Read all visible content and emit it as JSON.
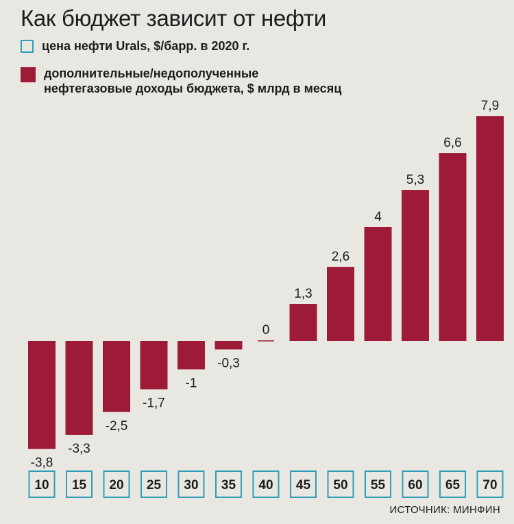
{
  "title": "Как бюджет зависит от нефти",
  "legend": {
    "price": {
      "label": "цена нефти Urals, $/барр. в 2020 г.",
      "color": "#2f9db8"
    },
    "income": {
      "lines": [
        "дополнительные/недополученные",
        "нефтегазовые доходы бюджета, $ млрд в месяц"
      ],
      "color": "#9d1b36"
    }
  },
  "source": "ИСТОЧНИК: МИНФИН",
  "chart_data": {
    "type": "bar",
    "categories": [
      "10",
      "15",
      "20",
      "25",
      "30",
      "35",
      "40",
      "45",
      "50",
      "55",
      "60",
      "65",
      "70"
    ],
    "values": [
      -3.8,
      -3.3,
      -2.5,
      -1.7,
      -1,
      -0.3,
      0,
      1.3,
      2.6,
      4,
      5.3,
      6.6,
      7.9
    ],
    "value_labels": [
      "-3,8",
      "-3,3",
      "-2,5",
      "-1,7",
      "-1",
      "-0,3",
      "0",
      "1,3",
      "2,6",
      "4",
      "5,3",
      "6,6",
      "7,9"
    ],
    "bar_color": "#9d1b36",
    "category_box_color": "#2f9db8"
  }
}
